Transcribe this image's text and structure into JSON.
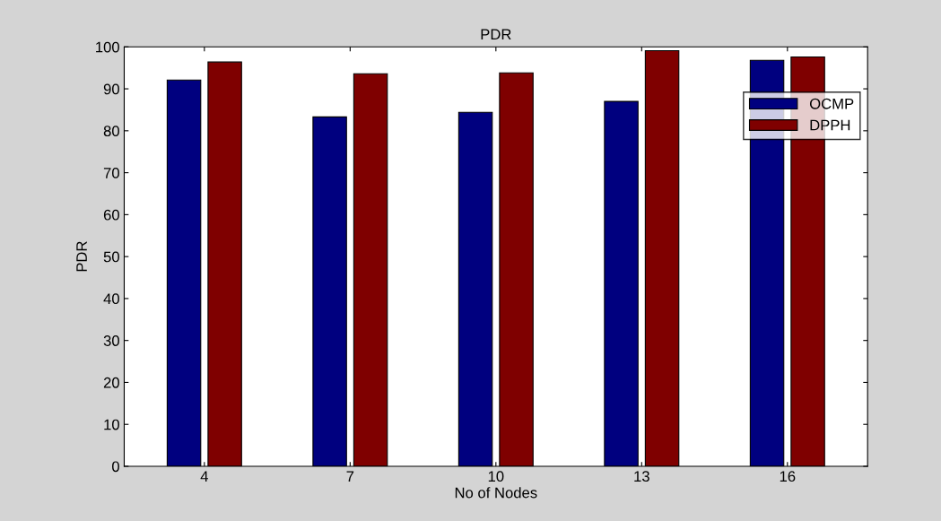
{
  "chart_data": {
    "type": "bar",
    "title": "PDR",
    "xlabel": "No of Nodes",
    "ylabel": "PDR",
    "categories": [
      "4",
      "7",
      "10",
      "13",
      "16"
    ],
    "series": [
      {
        "name": "OCMP",
        "color": "#00007f",
        "values": [
          92.1,
          83.3,
          84.4,
          87.0,
          96.8
        ]
      },
      {
        "name": "DPPH",
        "color": "#7f0000",
        "values": [
          96.4,
          93.6,
          93.8,
          99.1,
          97.6
        ]
      }
    ],
    "ylim": [
      0,
      100
    ],
    "yticks": [
      0,
      10,
      20,
      30,
      40,
      50,
      60,
      70,
      80,
      90,
      100
    ],
    "grid": false,
    "legend": "top right"
  }
}
